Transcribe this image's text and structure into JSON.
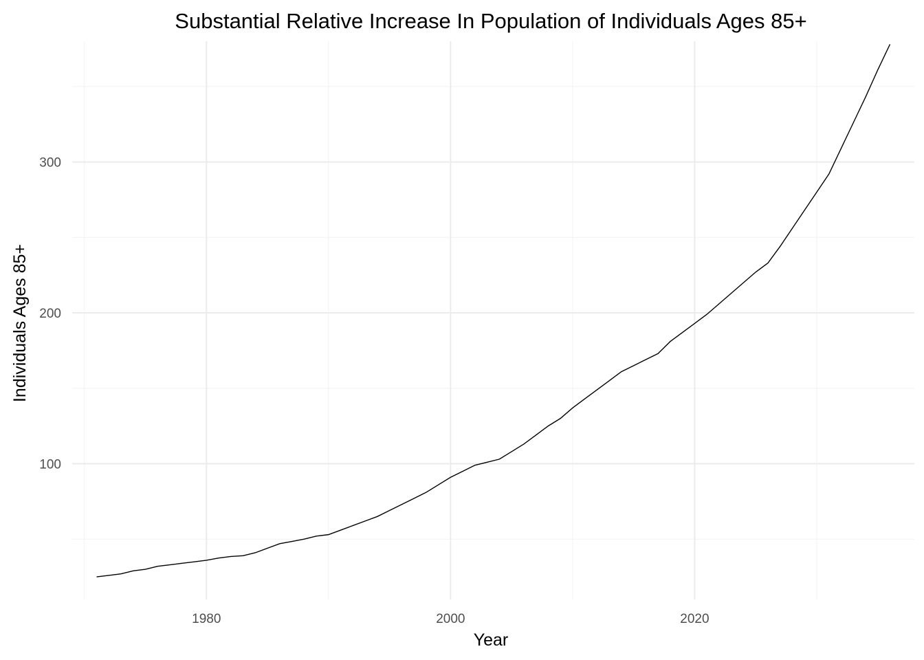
{
  "chart_data": {
    "type": "line",
    "title": "Substantial Relative Increase In Population of Individuals Ages 85+",
    "xlabel": "Year",
    "ylabel": "Individuals Ages 85+",
    "xlim": [
      1969,
      2038
    ],
    "ylim": [
      10,
      380
    ],
    "x_ticks": [
      1980,
      2000,
      2020
    ],
    "x_minor": [
      1970,
      1990,
      2010,
      2030
    ],
    "y_ticks": [
      100,
      200,
      300
    ],
    "y_minor": [
      50,
      150,
      250,
      350
    ],
    "grid": true,
    "legend": "none",
    "line_color": "#000000",
    "x": [
      1971,
      1972,
      1973,
      1974,
      1975,
      1976,
      1977,
      1978,
      1979,
      1980,
      1981,
      1982,
      1983,
      1984,
      1985,
      1986,
      1987,
      1988,
      1989,
      1990,
      1991,
      1992,
      1993,
      1994,
      1995,
      1996,
      1997,
      1998,
      1999,
      2000,
      2001,
      2002,
      2003,
      2004,
      2005,
      2006,
      2007,
      2008,
      2009,
      2010,
      2011,
      2012,
      2013,
      2014,
      2015,
      2016,
      2017,
      2018,
      2019,
      2020,
      2021,
      2022,
      2023,
      2024,
      2025,
      2026,
      2027,
      2028,
      2029,
      2030,
      2031,
      2032,
      2033,
      2034,
      2035,
      2036
    ],
    "y": [
      25,
      26,
      27,
      29,
      30,
      32,
      33,
      34,
      35,
      36,
      37.5,
      38.5,
      39,
      41,
      44,
      47,
      48.5,
      50,
      52,
      53,
      56,
      59,
      62,
      65,
      69,
      73,
      77,
      81,
      86,
      91,
      95,
      99,
      101,
      103,
      108,
      113,
      119,
      125,
      130,
      137,
      143,
      149,
      155,
      161,
      165,
      169,
      173,
      181,
      187,
      193,
      199,
      206,
      213,
      220,
      227,
      233,
      244,
      256,
      268,
      280,
      292,
      309,
      326,
      343,
      361,
      378
    ]
  }
}
